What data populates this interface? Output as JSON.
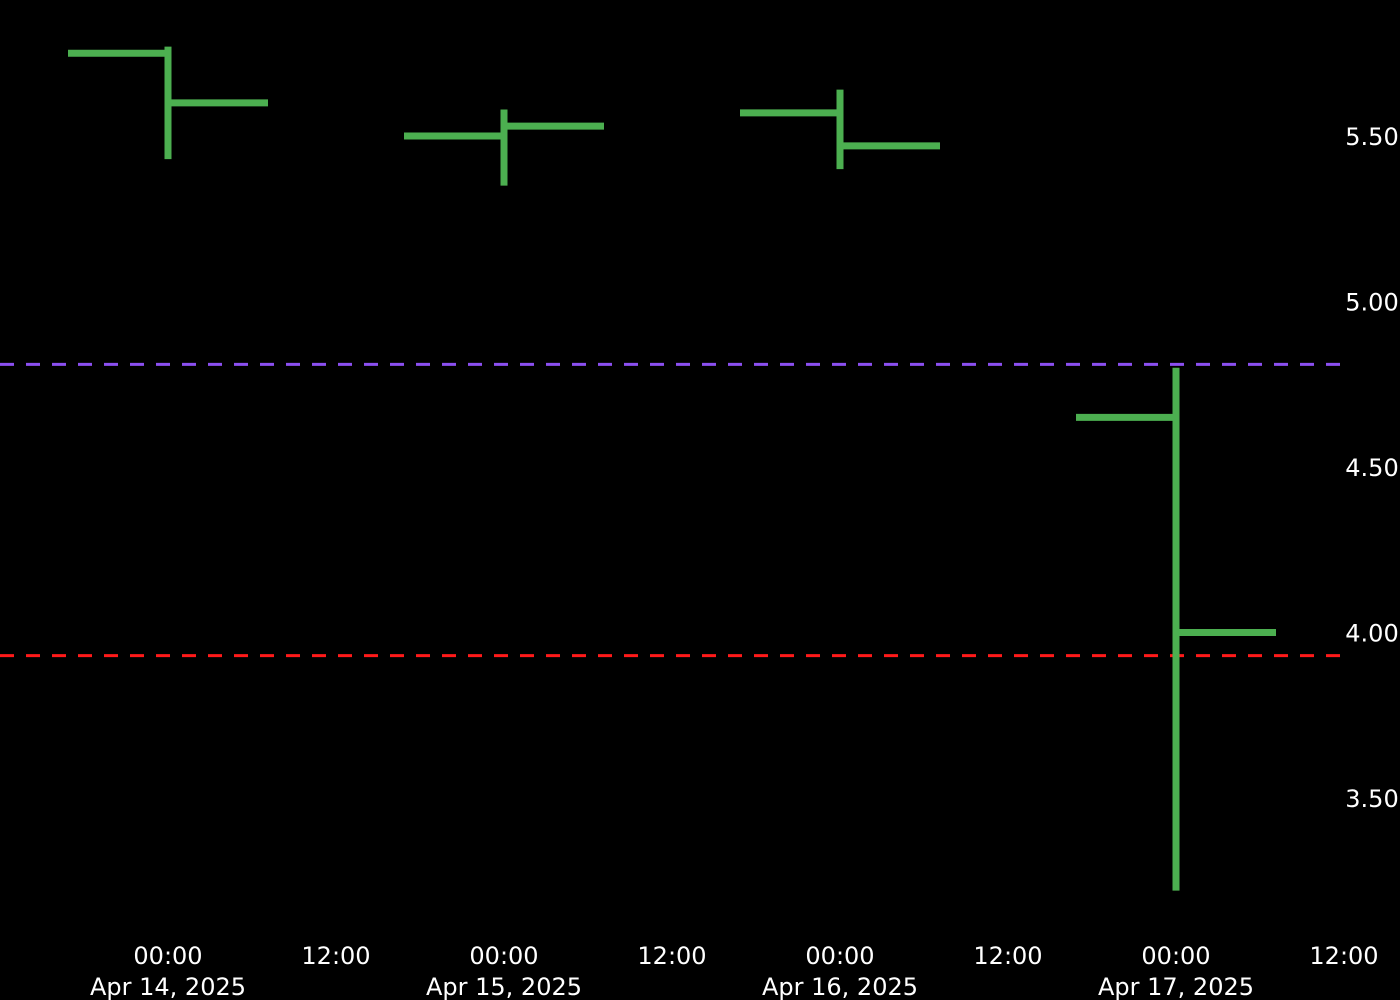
{
  "chart_data": {
    "type": "ohlc",
    "title": "",
    "xlabel": "",
    "ylabel": "",
    "background": "#000000",
    "text_color": "#ffffff",
    "bar_color": "#4caf50",
    "ylim": [
      3.25,
      5.8
    ],
    "y_axis_position": "right",
    "y_ticks": [
      "3.50",
      "4.00",
      "4.50",
      "5.00",
      "5.50"
    ],
    "x_ticks": [
      {
        "time": "00:00",
        "date": "Apr 14, 2025"
      },
      {
        "time": "12:00",
        "date": ""
      },
      {
        "time": "00:00",
        "date": "Apr 15, 2025"
      },
      {
        "time": "12:00",
        "date": ""
      },
      {
        "time": "00:00",
        "date": "Apr 16, 2025"
      },
      {
        "time": "12:00",
        "date": ""
      },
      {
        "time": "00:00",
        "date": "Apr 17, 2025"
      },
      {
        "time": "12:00",
        "date": ""
      }
    ],
    "bars": [
      {
        "date": "2025-04-14",
        "open": 5.75,
        "high": 5.77,
        "low": 5.43,
        "close": 5.6
      },
      {
        "date": "2025-04-15",
        "open": 5.5,
        "high": 5.58,
        "low": 5.35,
        "close": 5.53
      },
      {
        "date": "2025-04-16",
        "open": 5.57,
        "high": 5.64,
        "low": 5.4,
        "close": 5.47
      },
      {
        "date": "2025-04-17",
        "open": 4.65,
        "high": 4.8,
        "low": 3.22,
        "close": 4.0
      }
    ],
    "reference_lines": [
      {
        "value": 4.81,
        "color": "#8b4ff0",
        "style": "dashed"
      },
      {
        "value": 3.93,
        "color": "#ff1a1a",
        "style": "dashed"
      }
    ]
  }
}
